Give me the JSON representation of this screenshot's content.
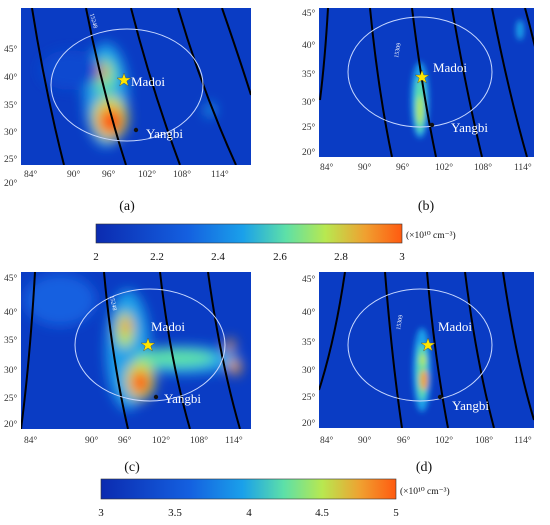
{
  "figure": {
    "lon_ticks": [
      "84°",
      "90°",
      "96°",
      "102°",
      "108°",
      "114°"
    ],
    "lat_ticks": [
      "20°",
      "25°",
      "30°",
      "35°",
      "40°",
      "45°"
    ],
    "lon_values": [
      84,
      90,
      96,
      102,
      108,
      114
    ],
    "lat_values": [
      20,
      25,
      30,
      35,
      40,
      45
    ],
    "cities": [
      {
        "name": "Madoi",
        "lon": 98.2,
        "lat": 34.9,
        "marker": "star"
      },
      {
        "name": "Yangbi",
        "lon": 99.9,
        "lat": 25.7,
        "marker": "dot"
      }
    ]
  },
  "panels": [
    {
      "label": "(a)",
      "orbit": "15248",
      "colorbar": 1
    },
    {
      "label": "(b)",
      "orbit": "15309",
      "colorbar": 1
    },
    {
      "label": "(c)",
      "orbit": "15248",
      "colorbar": 2
    },
    {
      "label": "(d)",
      "orbit": "15309",
      "colorbar": 2
    }
  ],
  "colorbars": [
    {
      "ticks": [
        "2",
        "2.2",
        "2.4",
        "2.6",
        "2.8",
        "3"
      ],
      "min": 2,
      "max": 3,
      "unit": "(×10¹⁰ cm⁻³)"
    },
    {
      "ticks": [
        "3",
        "3.5",
        "4",
        "4.5",
        "5"
      ],
      "min": 3,
      "max": 5,
      "unit": "(×10¹⁰ cm⁻³)"
    }
  ],
  "colors": {
    "background": "#0a3cc4",
    "colormap": [
      "#0b2bb0",
      "#1460e0",
      "#1aa0ea",
      "#5de0a8",
      "#b8e850",
      "#f0a030",
      "#ff5a10"
    ]
  }
}
